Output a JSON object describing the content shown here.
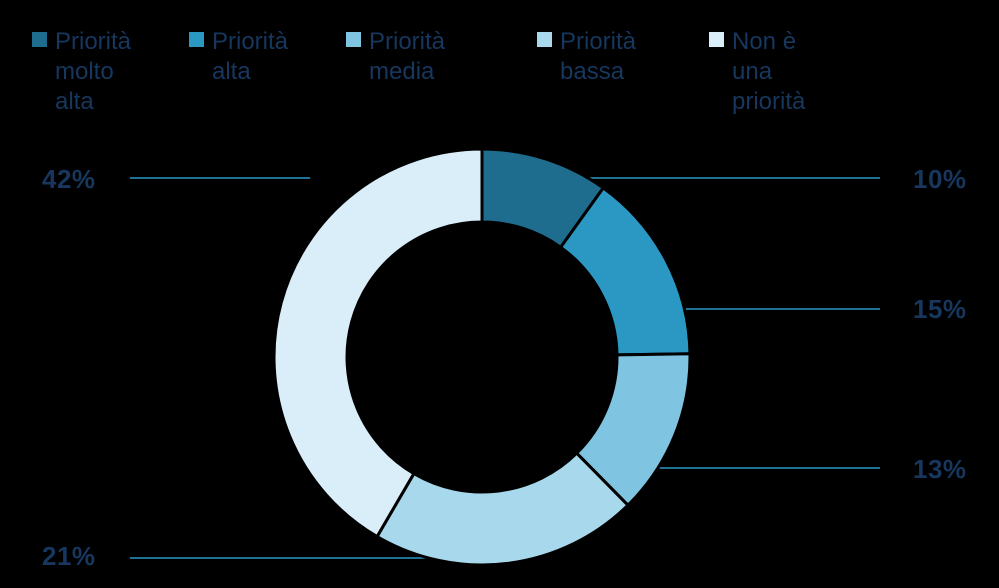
{
  "chart_data": {
    "type": "pie",
    "variant": "donut",
    "categories": [
      "Priorità molto alta",
      "Priorità alta",
      "Priorità media",
      "Priorità bassa",
      "Non è una priorità"
    ],
    "values": [
      10,
      15,
      13,
      21,
      42
    ],
    "value_labels": [
      "10%",
      "15%",
      "13%",
      "21%",
      "42%"
    ],
    "colors": [
      "#1f6d8e",
      "#2b98c4",
      "#7fc4e0",
      "#a7d8ec",
      "#d9eef8"
    ],
    "legend_position": "top",
    "title": "",
    "xlabel": "",
    "ylabel": ""
  },
  "legend": {
    "items": [
      {
        "label": "Priorità\nmolto\nalta",
        "color": "#1f6d8e"
      },
      {
        "label": "Priorità\nalta",
        "color": "#2b98c4"
      },
      {
        "label": "Priorità\nmedia",
        "color": "#7fc4e0"
      },
      {
        "label": "Priorità\nbassa",
        "color": "#a7d8ec"
      },
      {
        "label": "Non è\nuna\npriorità",
        "color": "#d9eef8"
      }
    ]
  },
  "label_text_color": "#17375e",
  "leader_line_color": "#2b98c4"
}
